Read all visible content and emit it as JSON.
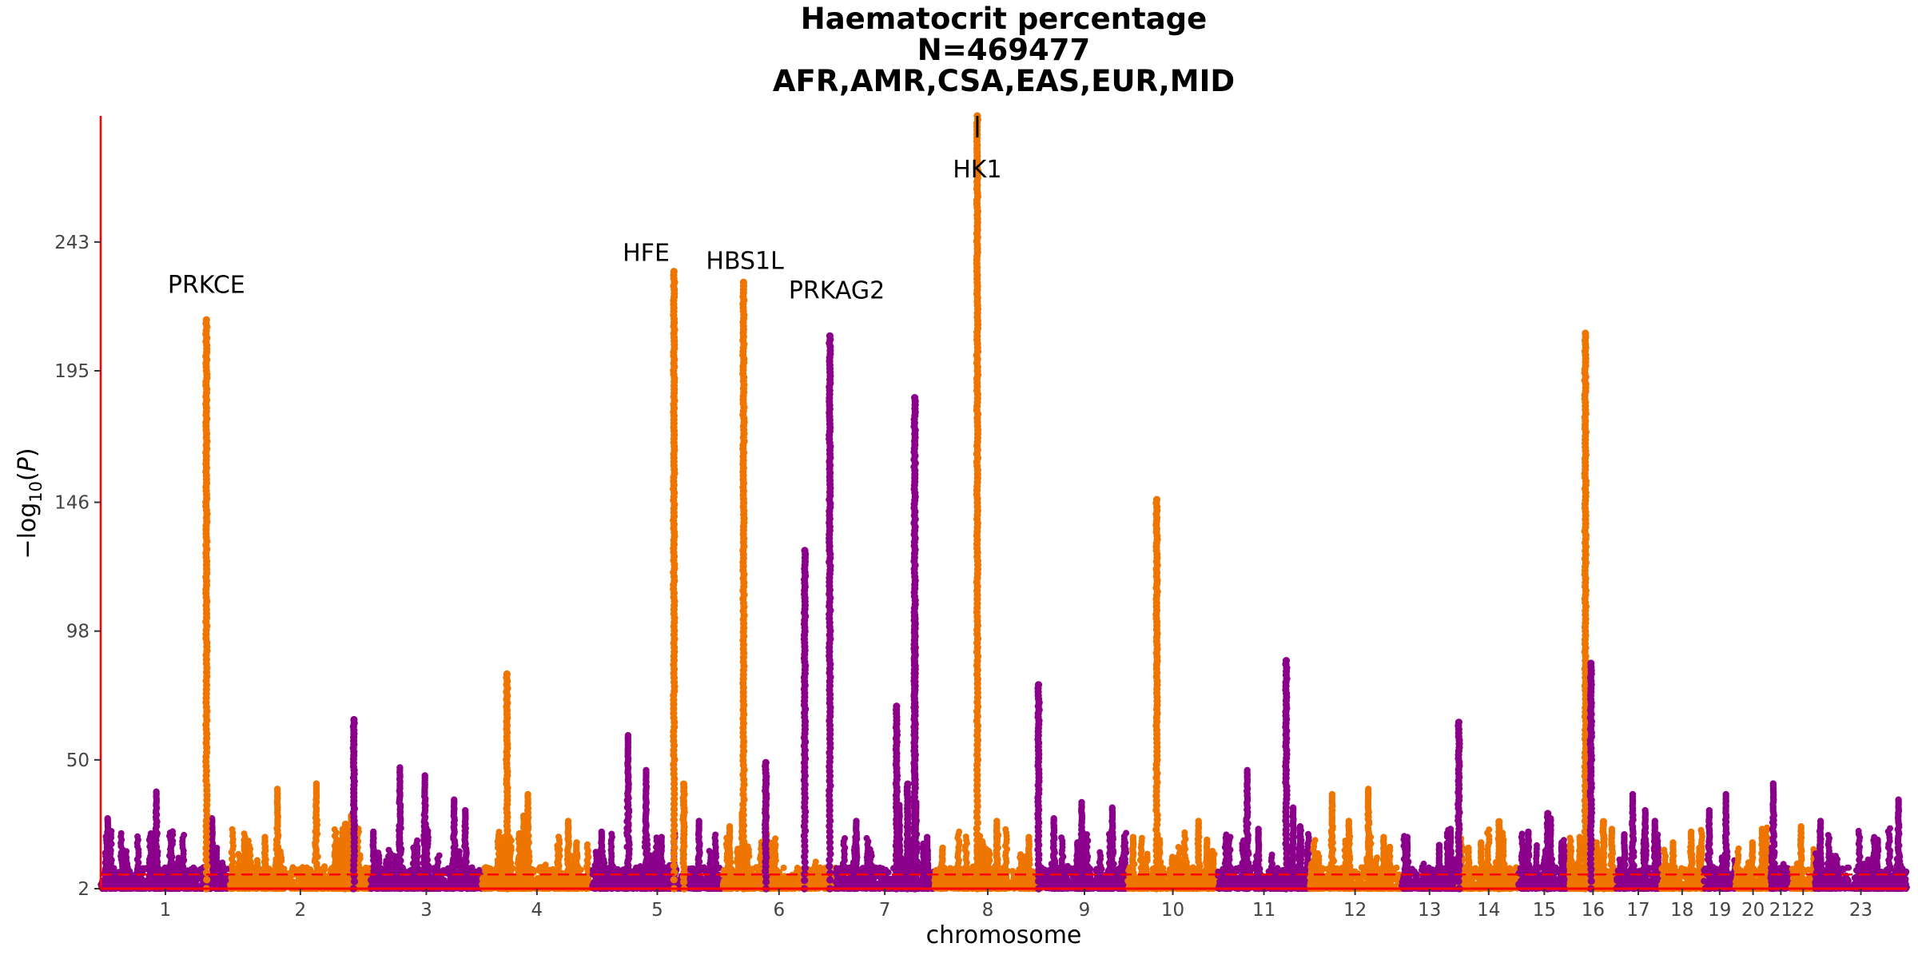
{
  "chart_data": {
    "type": "scatter",
    "subtype": "manhattan",
    "title": [
      "Haematocrit percentage",
      "N=469477",
      "AFR,AMR,CSA,EAS,EUR,MID"
    ],
    "xlabel": "chromosome",
    "ylabel": "−log10(P)",
    "yticks": [
      2,
      50,
      98,
      146,
      195,
      243
    ],
    "ylim": [
      2,
      290
    ],
    "y_axis_break": "values above ~285 compressed at top",
    "significance_line": 7.3,
    "colors": {
      "odd_chromosome": "#8B008B",
      "even_chromosome": "#EE7600",
      "threshold_line": "#FF0000",
      "axis_line": "#FF0000"
    },
    "chromosomes": [
      {
        "label": "1",
        "start": 0,
        "end": 9.3,
        "color": "purple",
        "peaks": [
          [
            0.5,
            29
          ],
          [
            4,
            39
          ],
          [
            8,
            29
          ]
        ]
      },
      {
        "label": "2",
        "start": 9.3,
        "end": 19.4,
        "color": "orange",
        "peaks": [
          [
            11.8,
            22
          ],
          [
            12.7,
            40
          ],
          [
            15.5,
            42
          ],
          [
            18,
            30
          ],
          [
            17.4,
            25
          ]
        ]
      },
      {
        "label": "3",
        "start": 19.4,
        "end": 27.4,
        "color": "purple",
        "peaks": [
          [
            19.6,
            24
          ],
          [
            21.5,
            48
          ],
          [
            23.3,
            45
          ],
          [
            25.4,
            36
          ],
          [
            26.2,
            32
          ]
        ]
      },
      {
        "label": "4",
        "start": 27.4,
        "end": 35.3,
        "color": "orange",
        "peaks": [
          [
            29,
            22
          ],
          [
            30.4,
            30
          ],
          [
            30.7,
            38
          ],
          [
            34.2,
            20
          ],
          [
            33.6,
            28
          ]
        ]
      },
      {
        "label": "5",
        "start": 35.3,
        "end": 44.7,
        "color": "purple",
        "peaks": [
          [
            36,
            24
          ],
          [
            37.9,
            60
          ],
          [
            39.2,
            47
          ],
          [
            40.3,
            22
          ],
          [
            43,
            28
          ]
        ]
      },
      {
        "label": "6",
        "start": 44.7,
        "end": 52.8,
        "color": "orange",
        "peaks": [
          [
            45.2,
            26
          ],
          [
            46.1,
            31
          ],
          [
            47.8,
            42
          ]
        ]
      },
      {
        "label": "7",
        "start": 52.8,
        "end": 59.9,
        "color": "purple",
        "peaks": [
          [
            54.3,
            28
          ],
          [
            57.4,
            34
          ],
          [
            58.6,
            35
          ],
          [
            59.4,
            22
          ]
        ]
      },
      {
        "label": "8",
        "start": 59.9,
        "end": 67.6,
        "color": "orange",
        "peaks": [
          [
            60.5,
            18
          ],
          [
            63,
            19
          ],
          [
            66.7,
            22
          ],
          [
            64.4,
            28
          ]
        ]
      },
      {
        "label": "9",
        "start": 67.6,
        "end": 73.8,
        "color": "purple",
        "peaks": [
          [
            68.5,
            29
          ],
          [
            70.2,
            20
          ],
          [
            70.5,
            35
          ],
          [
            72.7,
            33
          ]
        ]
      },
      {
        "label": "10",
        "start": 73.8,
        "end": 80.3,
        "color": "orange",
        "peaks": [
          [
            74.2,
            22
          ],
          [
            76.1,
            21
          ],
          [
            78.9,
            28
          ],
          [
            79.5,
            21
          ]
        ]
      },
      {
        "label": "11",
        "start": 80.3,
        "end": 86.9,
        "color": "purple",
        "peaks": [
          [
            82.4,
            47
          ],
          [
            83.2,
            25
          ],
          [
            85.7,
            33
          ],
          [
            86.2,
            26
          ]
        ]
      },
      {
        "label": "12",
        "start": 86.9,
        "end": 93.4,
        "color": "orange",
        "peaks": [
          [
            88.5,
            38
          ],
          [
            89.7,
            28
          ],
          [
            91.1,
            40
          ],
          [
            92.2,
            22
          ]
        ]
      },
      {
        "label": "13",
        "start": 93.4,
        "end": 97.6,
        "color": "purple",
        "peaks": [
          [
            93.9,
            22
          ],
          [
            96.2,
            19
          ],
          [
            97,
            25
          ]
        ]
      },
      {
        "label": "14",
        "start": 97.6,
        "end": 101.9,
        "color": "orange",
        "peaks": [
          [
            98.3,
            18
          ],
          [
            99.2,
            20
          ],
          [
            100.8,
            21
          ]
        ]
      },
      {
        "label": "15",
        "start": 101.9,
        "end": 105.6,
        "color": "purple",
        "peaks": [
          [
            102.6,
            24
          ],
          [
            104.2,
            29
          ],
          [
            105,
            20
          ]
        ]
      },
      {
        "label": "16",
        "start": 105.6,
        "end": 108.9,
        "color": "orange",
        "peaks": [
          [
            106.3,
            22
          ],
          [
            107.5,
            20
          ],
          [
            108.6,
            25
          ]
        ]
      },
      {
        "label": "17",
        "start": 108.9,
        "end": 112.1,
        "color": "purple",
        "peaks": [
          [
            109.5,
            23
          ],
          [
            110.1,
            38
          ],
          [
            111,
            32
          ],
          [
            111.7,
            28
          ]
        ]
      },
      {
        "label": "18",
        "start": 112.1,
        "end": 115.2,
        "color": "orange",
        "peaks": [
          [
            113,
            20
          ],
          [
            114.3,
            24
          ],
          [
            114.9,
            18
          ]
        ]
      },
      {
        "label": "19",
        "start": 115.2,
        "end": 117.5,
        "color": "purple",
        "peaks": [
          [
            115.6,
            32
          ],
          [
            116.8,
            38
          ]
        ]
      },
      {
        "label": "20",
        "start": 117.5,
        "end": 120.0,
        "color": "orange",
        "peaks": [
          [
            118.7,
            20
          ],
          [
            119.4,
            25
          ]
        ]
      },
      {
        "label": "21",
        "start": 120.0,
        "end": 121.5,
        "color": "purple",
        "peaks": [
          [
            120.2,
            42
          ]
        ]
      },
      {
        "label": "22",
        "start": 121.5,
        "end": 123.2,
        "color": "orange",
        "peaks": [
          [
            122.2,
            26
          ]
        ]
      },
      {
        "label": "23",
        "start": 123.2,
        "end": 129.8,
        "color": "purple",
        "peaks": [
          [
            123.6,
            28
          ],
          [
            127.7,
            21
          ],
          [
            129.2,
            36
          ]
        ]
      }
    ],
    "hits": [
      {
        "x": 7.6,
        "y": 214,
        "color": "orange"
      },
      {
        "x": 17.6,
        "y": 26,
        "color": "orange"
      },
      {
        "x": 29.2,
        "y": 82,
        "color": "orange"
      },
      {
        "x": 41.2,
        "y": 232,
        "color": "orange"
      },
      {
        "x": 41.9,
        "y": 41,
        "color": "orange"
      },
      {
        "x": 46.2,
        "y": 228,
        "color": "orange"
      },
      {
        "x": 47.8,
        "y": 49,
        "color": "purple"
      },
      {
        "x": 50.6,
        "y": 128,
        "color": "purple"
      },
      {
        "x": 52.4,
        "y": 208,
        "color": "purple"
      },
      {
        "x": 58.5,
        "y": 185,
        "color": "purple"
      },
      {
        "x": 58.5,
        "y": 104,
        "color": "purple"
      },
      {
        "x": 63,
        "y": 290,
        "color": "orange"
      },
      {
        "x": 67.4,
        "y": 78,
        "color": "purple"
      },
      {
        "x": 75.9,
        "y": 147,
        "color": "orange"
      },
      {
        "x": 85.2,
        "y": 87,
        "color": "purple"
      },
      {
        "x": 97.6,
        "y": 64,
        "color": "purple"
      },
      {
        "x": 106.7,
        "y": 209,
        "color": "orange"
      },
      {
        "x": 107.1,
        "y": 86,
        "color": "purple"
      },
      {
        "x": 104,
        "y": 30,
        "color": "purple"
      },
      {
        "x": 100.5,
        "y": 27,
        "color": "orange"
      },
      {
        "x": 108,
        "y": 27,
        "color": "orange"
      },
      {
        "x": 18.2,
        "y": 65,
        "color": "purple"
      },
      {
        "x": 57.2,
        "y": 70,
        "color": "purple"
      },
      {
        "x": 58,
        "y": 41,
        "color": "purple"
      }
    ],
    "annotations": [
      {
        "text": "PRKCE",
        "x": 7.6,
        "y": 224
      },
      {
        "text": "HFE",
        "x": 39.2,
        "y": 236
      },
      {
        "text": "HBS1L",
        "x": 46.3,
        "y": 233
      },
      {
        "text": "PRKAG2",
        "x": 52.9,
        "y": 222
      },
      {
        "text": "HK1",
        "x": 63,
        "y": 267
      }
    ]
  }
}
